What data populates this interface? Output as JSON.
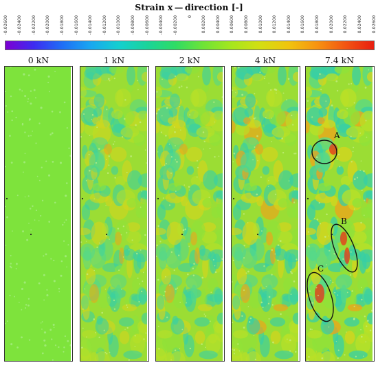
{
  "title": "Strain x — direction [-]",
  "colorbar": {
    "ticks": [
      "-0.02600",
      "-0.02400",
      "-0.02200",
      "-0.02000",
      "-0.01800",
      "-0.01600",
      "-0.01400",
      "-0.01200",
      "-0.01000",
      "-0.00800",
      "-0.00600",
      "-0.00400",
      "-0.00200",
      "0",
      "0.00200",
      "0.00400",
      "0.00600",
      "0.00800",
      "0.01000",
      "0.01200",
      "0.01400",
      "0.01600",
      "0.01800",
      "0.02000",
      "0.02200",
      "0.02400",
      "0.02600"
    ],
    "colors": [
      "#7d00d2",
      "#3d2cf0",
      "#1f6ef6",
      "#19a7f0",
      "#14cfcf",
      "#1ad49a",
      "#2fdc64",
      "#6fe436",
      "#a7e61c",
      "#d4de12",
      "#f0c40e",
      "#f79310",
      "#f25512",
      "#e81e10"
    ]
  },
  "panels": [
    {
      "label": "0 kN"
    },
    {
      "label": "1 kN"
    },
    {
      "label": "2 kN"
    },
    {
      "label": "4 kN"
    },
    {
      "label": "7.4 kN"
    }
  ],
  "zones": {
    "a": "A",
    "b": "B",
    "c": "C"
  },
  "colors": {
    "base": "#7ee33c",
    "strain_mid": "#a9df2e",
    "strain_high": "#f0a21a",
    "strain_peak": "#e9321a",
    "strain_low": "#37cfa5",
    "outline": "#111111"
  }
}
